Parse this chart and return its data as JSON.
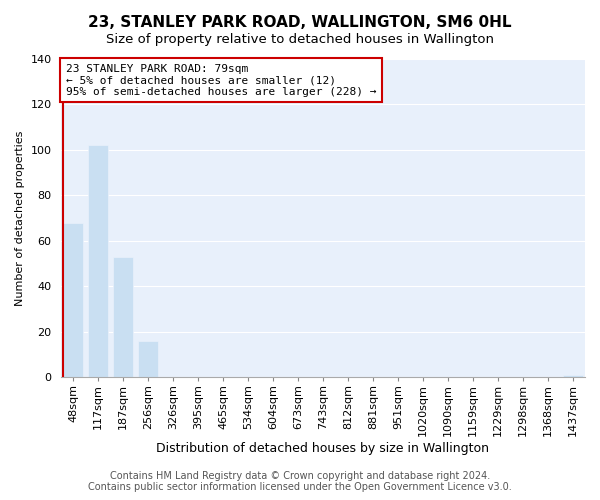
{
  "title": "23, STANLEY PARK ROAD, WALLINGTON, SM6 0HL",
  "subtitle": "Size of property relative to detached houses in Wallington",
  "xlabel": "Distribution of detached houses by size in Wallington",
  "ylabel": "Number of detached properties",
  "bar_labels": [
    "48sqm",
    "117sqm",
    "187sqm",
    "256sqm",
    "326sqm",
    "395sqm",
    "465sqm",
    "534sqm",
    "604sqm",
    "673sqm",
    "743sqm",
    "812sqm",
    "881sqm",
    "951sqm",
    "1020sqm",
    "1090sqm",
    "1159sqm",
    "1229sqm",
    "1298sqm",
    "1368sqm",
    "1437sqm"
  ],
  "bar_values": [
    68,
    102,
    53,
    16,
    0,
    0,
    0,
    0,
    0,
    0,
    0,
    0,
    0,
    0,
    0,
    0,
    0,
    0,
    0,
    0,
    1
  ],
  "bar_color": "#c9dff2",
  "highlight_color": "#cc0000",
  "annotation_line1": "23 STANLEY PARK ROAD: 79sqm",
  "annotation_line2": "← 5% of detached houses are smaller (12)",
  "annotation_line3": "95% of semi-detached houses are larger (228) →",
  "annotation_box_color": "#ffffff",
  "annotation_box_edge_color": "#cc0000",
  "ylim": [
    0,
    140
  ],
  "yticks": [
    0,
    20,
    40,
    60,
    80,
    100,
    120,
    140
  ],
  "footer_line1": "Contains HM Land Registry data © Crown copyright and database right 2024.",
  "footer_line2": "Contains public sector information licensed under the Open Government Licence v3.0.",
  "bg_color": "#ffffff",
  "plot_bg_color": "#e8f0fb",
  "grid_color": "#ffffff",
  "title_fontsize": 11,
  "subtitle_fontsize": 9.5,
  "xlabel_fontsize": 9,
  "ylabel_fontsize": 8,
  "tick_fontsize": 8,
  "annotation_fontsize": 8,
  "footer_fontsize": 7
}
